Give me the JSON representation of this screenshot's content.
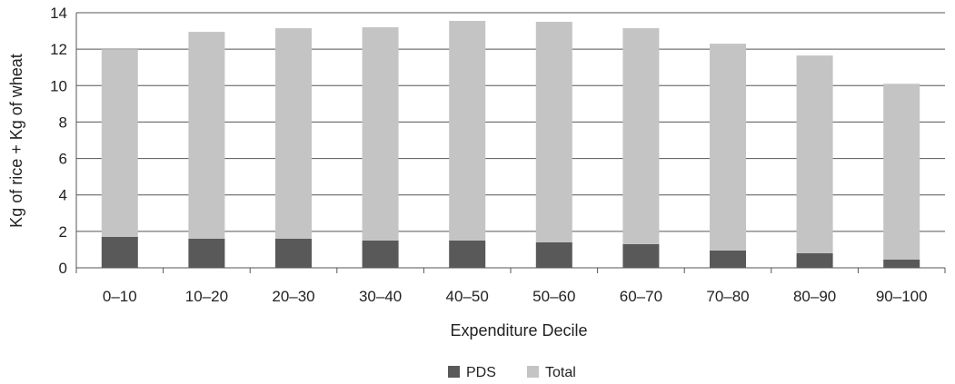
{
  "chart_data": {
    "type": "bar",
    "stacked": true,
    "categories": [
      "0–10",
      "10–20",
      "20–30",
      "30–40",
      "40–50",
      "50–60",
      "60–70",
      "70–80",
      "80–90",
      "90–100"
    ],
    "series": [
      {
        "name": "PDS",
        "color": "#595959",
        "values": [
          1.7,
          1.6,
          1.6,
          1.5,
          1.5,
          1.4,
          1.3,
          0.95,
          0.8,
          0.45
        ]
      },
      {
        "name": "Total",
        "color": "#c4c4c4",
        "values": [
          10.3,
          11.35,
          11.55,
          11.7,
          12.05,
          12.1,
          11.85,
          11.35,
          10.85,
          9.65
        ]
      }
    ],
    "xlabel": "Expenditure Decile",
    "ylabel": "Kg of rice + Kg of wheat",
    "ylim": [
      0,
      14
    ],
    "yticks": [
      0,
      2,
      4,
      6,
      8,
      10,
      12,
      14
    ],
    "grid": true,
    "legend_position": "bottom"
  }
}
